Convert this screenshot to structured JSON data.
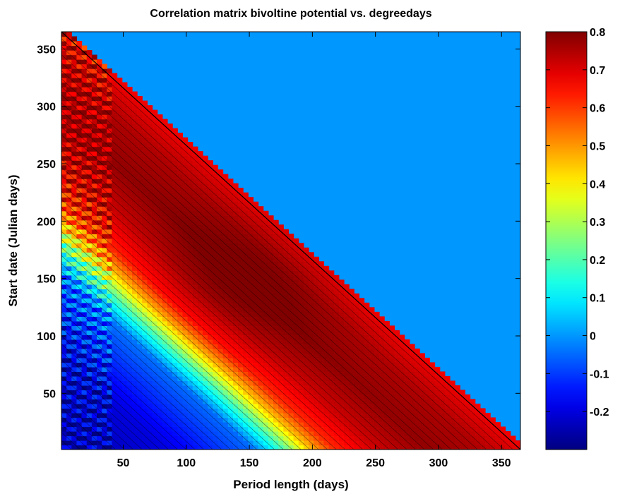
{
  "chart_data": {
    "type": "heatmap",
    "title": "Correlation matrix bivoltine potential vs. degreedays",
    "xlabel": "Period length (days)",
    "ylabel": "Start date (Julian days)",
    "xlim": [
      1,
      365
    ],
    "ylim": [
      1,
      365
    ],
    "x_ticks": [
      50,
      100,
      150,
      200,
      250,
      300,
      350
    ],
    "y_ticks": [
      50,
      100,
      150,
      200,
      250,
      300,
      350
    ],
    "colorbar": {
      "clim": [
        -0.3,
        0.8
      ],
      "ticks": [
        -0.2,
        -0.1,
        0,
        0.1,
        0.2,
        0.3,
        0.4,
        0.5,
        0.6,
        0.7,
        0.8
      ],
      "tick_labels": [
        "-0.2",
        "-0.1",
        "0",
        "0.1",
        "0.2",
        "0.3",
        "0.4",
        "0.5",
        "0.6",
        "0.7",
        "0.8"
      ],
      "colormap": "jet"
    },
    "masked_region": {
      "description_value": 0,
      "condition": "start_date + period_length > 365"
    },
    "value_bands_by_end_date": [
      {
        "end_date": 1,
        "value": -0.25
      },
      {
        "end_date": 80,
        "value": -0.2
      },
      {
        "end_date": 150,
        "value": -0.05
      },
      {
        "end_date": 175,
        "value": 0.2
      },
      {
        "end_date": 195,
        "value": 0.45
      },
      {
        "end_date": 215,
        "value": 0.62
      },
      {
        "end_date": 250,
        "value": 0.72
      },
      {
        "end_date": 290,
        "value": 0.78
      },
      {
        "end_date": 330,
        "value": 0.75
      },
      {
        "end_date": 365,
        "value": 0.68
      }
    ],
    "grid": false,
    "contour_lines": true
  }
}
